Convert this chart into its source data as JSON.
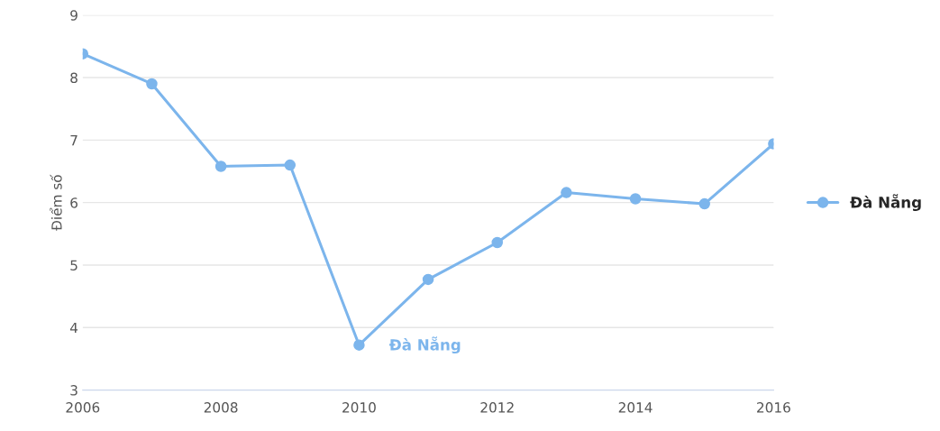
{
  "chart_data": {
    "type": "line",
    "ylabel": "Điểm số",
    "x": [
      2006,
      2007,
      2008,
      2009,
      2010,
      2011,
      2012,
      2013,
      2014,
      2015,
      2016
    ],
    "series": [
      {
        "name": "Đà Nẵng",
        "color": "#7cb5ec",
        "values": [
          8.38,
          7.9,
          6.58,
          6.6,
          3.72,
          4.77,
          5.36,
          6.16,
          6.06,
          5.98,
          6.94
        ]
      }
    ],
    "annotations": [
      {
        "text": "Đà Nẵng",
        "x": 2010,
        "y": 3.72
      }
    ],
    "xlim": [
      2006,
      2016
    ],
    "xticks": [
      2006,
      2008,
      2010,
      2012,
      2014,
      2016
    ],
    "ylim": [
      3,
      9
    ],
    "yticks": [
      3,
      4,
      5,
      6,
      7,
      8,
      9
    ],
    "grid": "y",
    "legend": "right",
    "marker": "circle",
    "line_style": "solid"
  }
}
